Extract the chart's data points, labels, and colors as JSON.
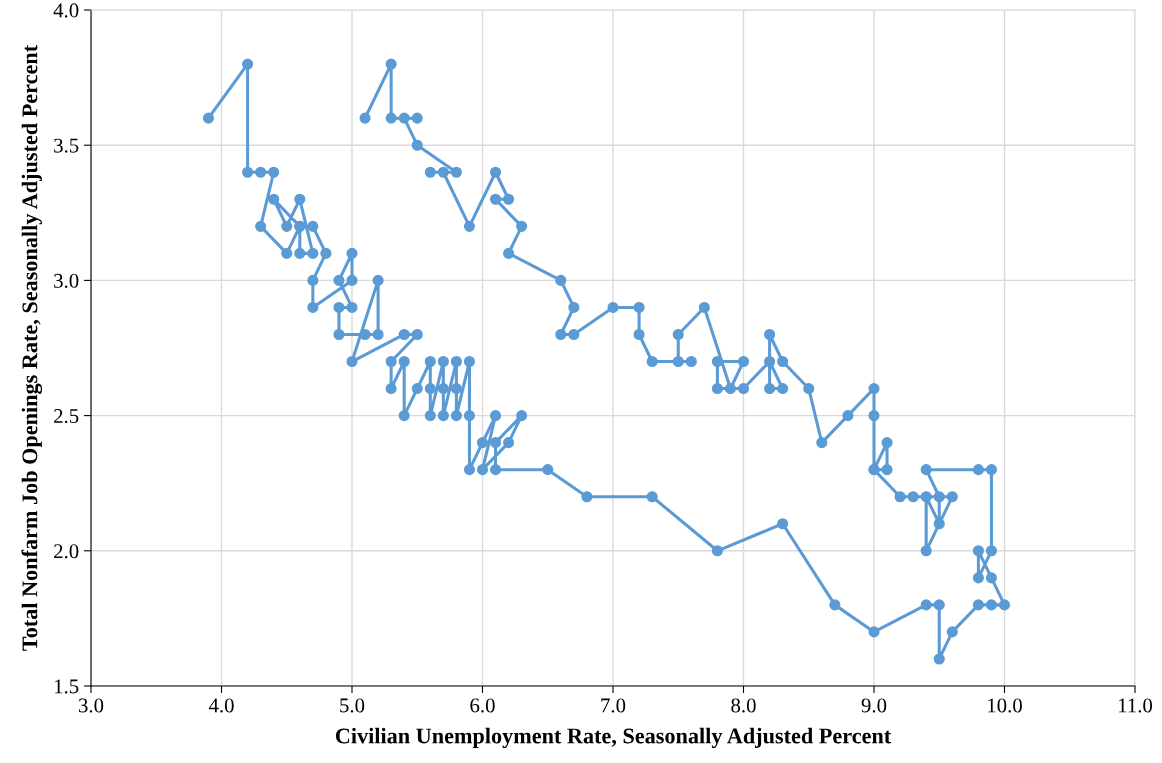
{
  "chart_data": {
    "type": "line",
    "xlabel": "Civilian Unemployment Rate, Seasonally Adjusted Percent",
    "ylabel": "Total Nonfarm Job Openings Rate, Seasonally Adjusted Percent",
    "marker": "circle",
    "line_style": "solid",
    "grid": true,
    "legend": false,
    "xlim": [
      3.0,
      11.0
    ],
    "xticks": [
      {
        "value": 3,
        "label": "3.0"
      },
      {
        "value": 4,
        "label": "4.0"
      },
      {
        "value": 5,
        "label": "5.0"
      },
      {
        "value": 6,
        "label": "6.0"
      },
      {
        "value": 7,
        "label": "7.0"
      },
      {
        "value": 8,
        "label": "8.0"
      },
      {
        "value": 9,
        "label": "9.0"
      },
      {
        "value": 10,
        "label": "10.0"
      },
      {
        "value": 11,
        "label": "11.0"
      }
    ],
    "ylim": [
      1.5,
      4.0
    ],
    "yticks": [
      {
        "value": 1.5,
        "label": "1.5"
      },
      {
        "value": 2,
        "label": "2.0"
      },
      {
        "value": 2.5,
        "label": "2.5"
      },
      {
        "value": 3,
        "label": "3.0"
      },
      {
        "value": 3.5,
        "label": "3.5"
      },
      {
        "value": 4,
        "label": "4.0"
      }
    ],
    "series": [
      {
        "color": "#5b9bd5",
        "x": [
          3.9,
          4.2,
          4.2,
          4.3,
          4.4,
          4.3,
          4.5,
          4.6,
          4.4,
          4.5,
          4.6,
          4.7,
          4.6,
          4.6,
          4.7,
          4.8,
          4.7,
          4.7,
          5.0,
          5.0,
          4.9,
          5.0,
          4.9,
          4.9,
          5.1,
          5.2,
          5.2,
          5.0,
          5.4,
          5.5,
          5.3,
          5.3,
          5.4,
          5.4,
          5.5,
          5.6,
          5.6,
          5.6,
          5.7,
          5.7,
          5.7,
          5.8,
          5.8,
          5.8,
          5.9,
          5.9,
          5.9,
          6.0,
          6.1,
          6.0,
          6.2,
          6.3,
          6.1,
          6.1,
          6.5,
          6.8,
          7.3,
          7.8,
          8.3,
          8.7,
          9.0,
          9.4,
          9.5,
          9.5,
          9.6,
          9.8,
          9.9,
          10.0,
          9.9,
          9.8,
          9.8,
          9.9,
          9.9,
          9.8,
          9.4,
          9.5,
          9.5,
          9.4,
          9.4,
          9.6,
          9.3,
          9.2,
          9.0,
          9.1,
          9.1,
          9.0,
          9.0,
          9.0,
          8.8,
          8.6,
          8.5,
          8.3,
          8.2,
          8.2,
          8.3,
          8.2,
          8.0,
          7.8,
          7.8,
          8.0,
          7.9,
          7.7,
          7.5,
          7.5,
          7.6,
          7.3,
          7.2,
          7.2,
          7.0,
          6.7,
          6.6,
          6.7,
          6.6,
          6.2,
          6.3,
          6.1,
          6.2,
          6.1,
          5.9,
          5.7,
          5.6,
          5.8,
          5.5,
          5.4,
          5.5,
          5.3,
          5.3,
          5.1
        ],
        "values": [
          3.6,
          3.8,
          3.4,
          3.4,
          3.4,
          3.2,
          3.1,
          3.2,
          3.3,
          3.2,
          3.3,
          3.1,
          3.1,
          3.2,
          3.2,
          3.1,
          3.0,
          2.9,
          3.0,
          3.1,
          3.0,
          2.9,
          2.9,
          2.8,
          2.8,
          2.8,
          3.0,
          2.7,
          2.8,
          2.8,
          2.7,
          2.6,
          2.7,
          2.5,
          2.6,
          2.7,
          2.6,
          2.5,
          2.7,
          2.6,
          2.5,
          2.7,
          2.6,
          2.5,
          2.7,
          2.5,
          2.3,
          2.4,
          2.5,
          2.3,
          2.4,
          2.5,
          2.4,
          2.3,
          2.3,
          2.2,
          2.2,
          2.0,
          2.1,
          1.8,
          1.7,
          1.8,
          1.8,
          1.6,
          1.7,
          1.8,
          1.8,
          1.8,
          1.9,
          2.0,
          1.9,
          2.0,
          2.3,
          2.3,
          2.3,
          2.2,
          2.1,
          2.2,
          2.0,
          2.2,
          2.2,
          2.2,
          2.3,
          2.3,
          2.4,
          2.3,
          2.5,
          2.6,
          2.5,
          2.4,
          2.6,
          2.7,
          2.8,
          2.6,
          2.6,
          2.7,
          2.6,
          2.6,
          2.7,
          2.7,
          2.6,
          2.9,
          2.8,
          2.7,
          2.7,
          2.7,
          2.8,
          2.9,
          2.9,
          2.8,
          2.8,
          2.9,
          3.0,
          3.1,
          3.2,
          3.3,
          3.3,
          3.4,
          3.2,
          3.4,
          3.4,
          3.4,
          3.5,
          3.6,
          3.6,
          3.6,
          3.8,
          3.6
        ]
      }
    ]
  }
}
